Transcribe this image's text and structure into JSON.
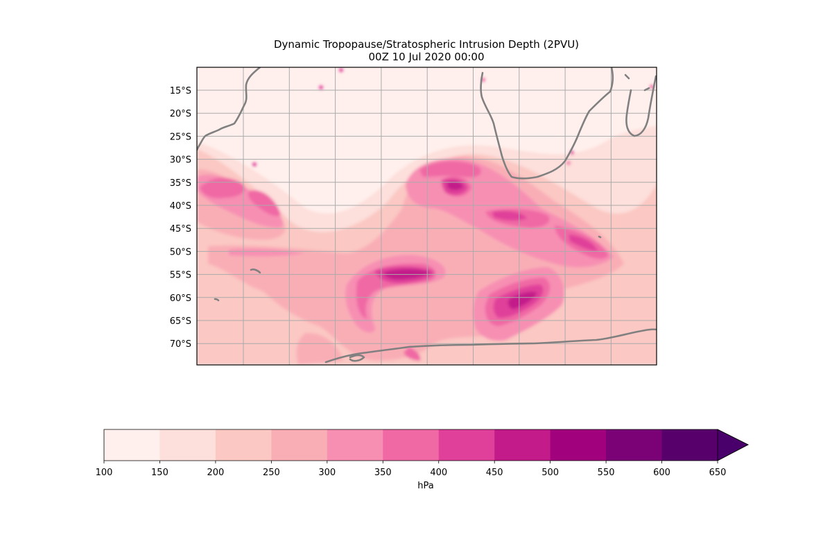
{
  "title": {
    "line1": "Dynamic Tropopause/Stratospheric Intrusion Depth (2PVU)",
    "line2": "00Z 10 Jul 2020 00:00"
  },
  "map": {
    "lat_labels": [
      "15°S",
      "20°S",
      "25°S",
      "30°S",
      "35°S",
      "40°S",
      "45°S",
      "50°S",
      "55°S",
      "60°S",
      "65°S",
      "70°S"
    ],
    "grid": true,
    "gridline_color": "#aaaaaa",
    "coastline_color": "#808080",
    "frame_color": "#000000"
  },
  "colorbar": {
    "label": "hPa",
    "ticks": [
      "100",
      "150",
      "200",
      "250",
      "300",
      "350",
      "400",
      "450",
      "500",
      "550",
      "600",
      "650"
    ],
    "colors": [
      "#fff0ed",
      "#fddfdb",
      "#fbc8c3",
      "#f9aeb6",
      "#f78fb3",
      "#f069a4",
      "#e0409a",
      "#c31b8a",
      "#a2017d",
      "#7b0177",
      "#57006c",
      "#49006a"
    ],
    "extend": "max"
  }
}
